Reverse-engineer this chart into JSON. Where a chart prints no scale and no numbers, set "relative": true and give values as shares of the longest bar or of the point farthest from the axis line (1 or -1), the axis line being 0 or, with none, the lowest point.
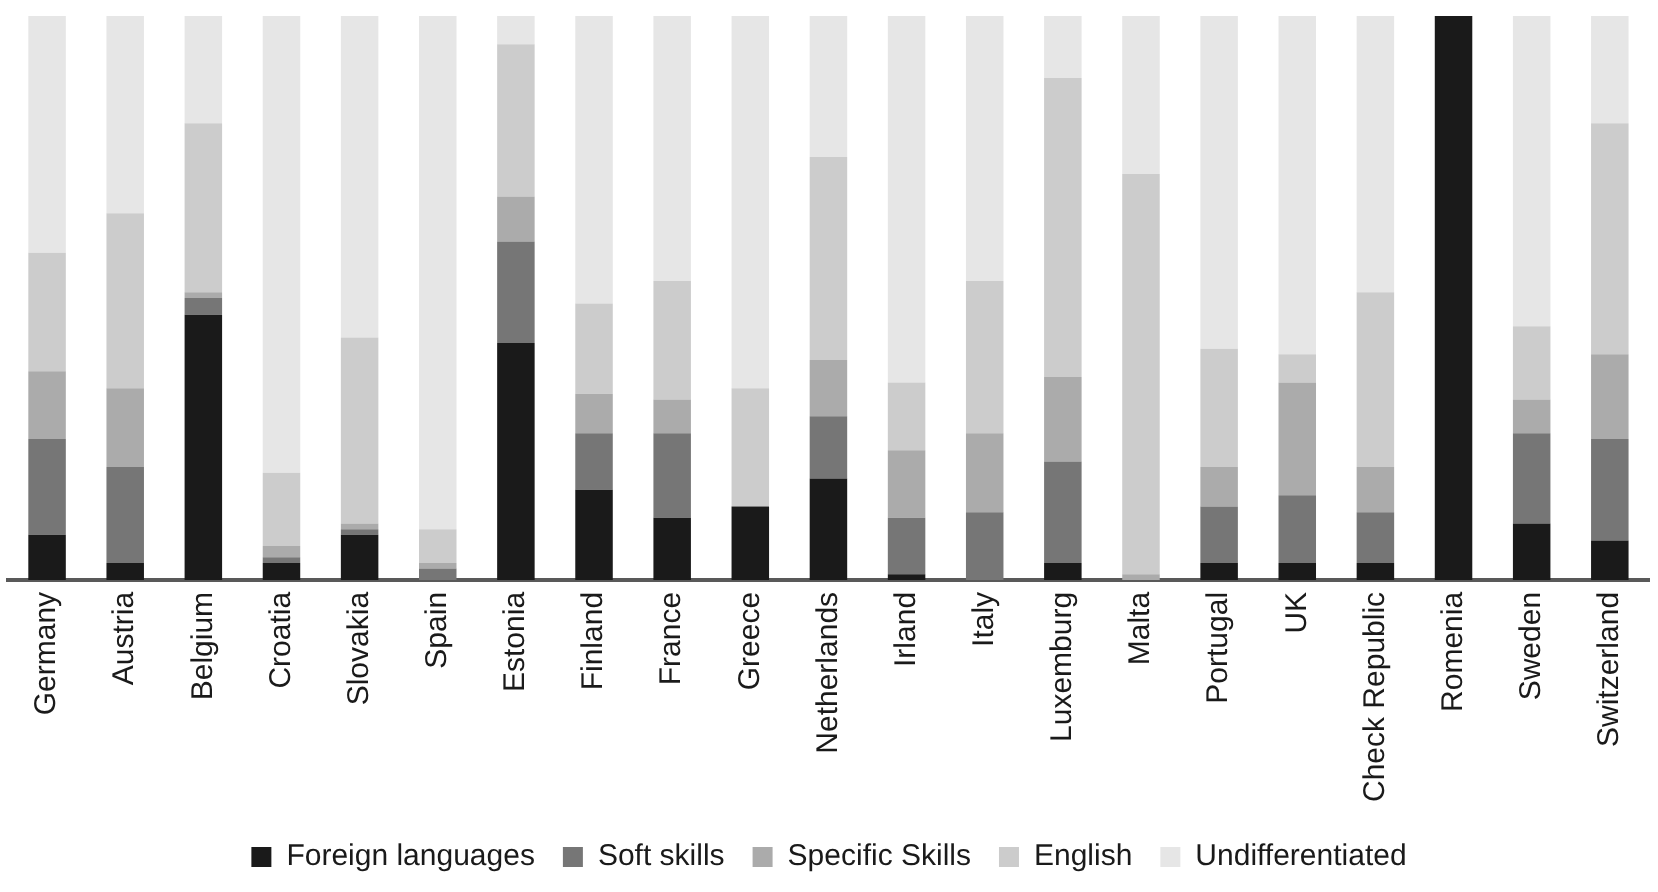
{
  "chart_data": {
    "type": "bar",
    "stacked": true,
    "relative": true,
    "legend": "bottom",
    "grid": false,
    "categories": [
      "Germany",
      "Austria",
      "Belgium",
      "Croatia",
      "Slovakia",
      "Spain",
      "Estonia",
      "Finland",
      "France",
      "Greece",
      "Netherlands",
      "Irland",
      "Italy",
      "Luxemburg",
      "Malta",
      "Portugal",
      "UK",
      "Check Republic",
      "Romenia",
      "Sweden",
      "Switzerland"
    ],
    "series": [
      {
        "name": "Foreign languages",
        "color": "#1a1a1a",
        "values": [
          0.08,
          0.03,
          0.47,
          0.03,
          0.08,
          0,
          0.42,
          0.16,
          0.11,
          0.13,
          0.18,
          0.01,
          0,
          0.03,
          0,
          0.03,
          0.03,
          0.03,
          1,
          0.1,
          0.07
        ]
      },
      {
        "name": "Soft skills",
        "color": "#767676",
        "values": [
          0.17,
          0.17,
          0.03,
          0.01,
          0.01,
          0.02,
          0.18,
          0.1,
          0.15,
          0,
          0.11,
          0.1,
          0.12,
          0.18,
          0,
          0.1,
          0.12,
          0.09,
          0,
          0.16,
          0.18
        ]
      },
      {
        "name": "Specific Skills",
        "color": "#ababab",
        "values": [
          0.12,
          0.14,
          0.01,
          0.02,
          0.01,
          0.01,
          0.08,
          0.07,
          0.06,
          0,
          0.1,
          0.12,
          0.14,
          0.15,
          0.01,
          0.07,
          0.2,
          0.08,
          0,
          0.06,
          0.15
        ]
      },
      {
        "name": "English",
        "color": "#cccccc",
        "values": [
          0.21,
          0.31,
          0.3,
          0.13,
          0.33,
          0.06,
          0.27,
          0.16,
          0.21,
          0.21,
          0.36,
          0.12,
          0.27,
          0.53,
          0.71,
          0.21,
          0.05,
          0.31,
          0,
          0.13,
          0.41
        ]
      },
      {
        "name": "Undifferentiated",
        "color": "#e6e6e6",
        "values": [
          0.42,
          0.35,
          0.19,
          0.81,
          0.57,
          0.91,
          0.05,
          0.51,
          0.47,
          0.66,
          0.25,
          0.65,
          0.47,
          0.11,
          0.28,
          0.59,
          0.6,
          0.49,
          0,
          0.55,
          0.19
        ]
      }
    ]
  }
}
